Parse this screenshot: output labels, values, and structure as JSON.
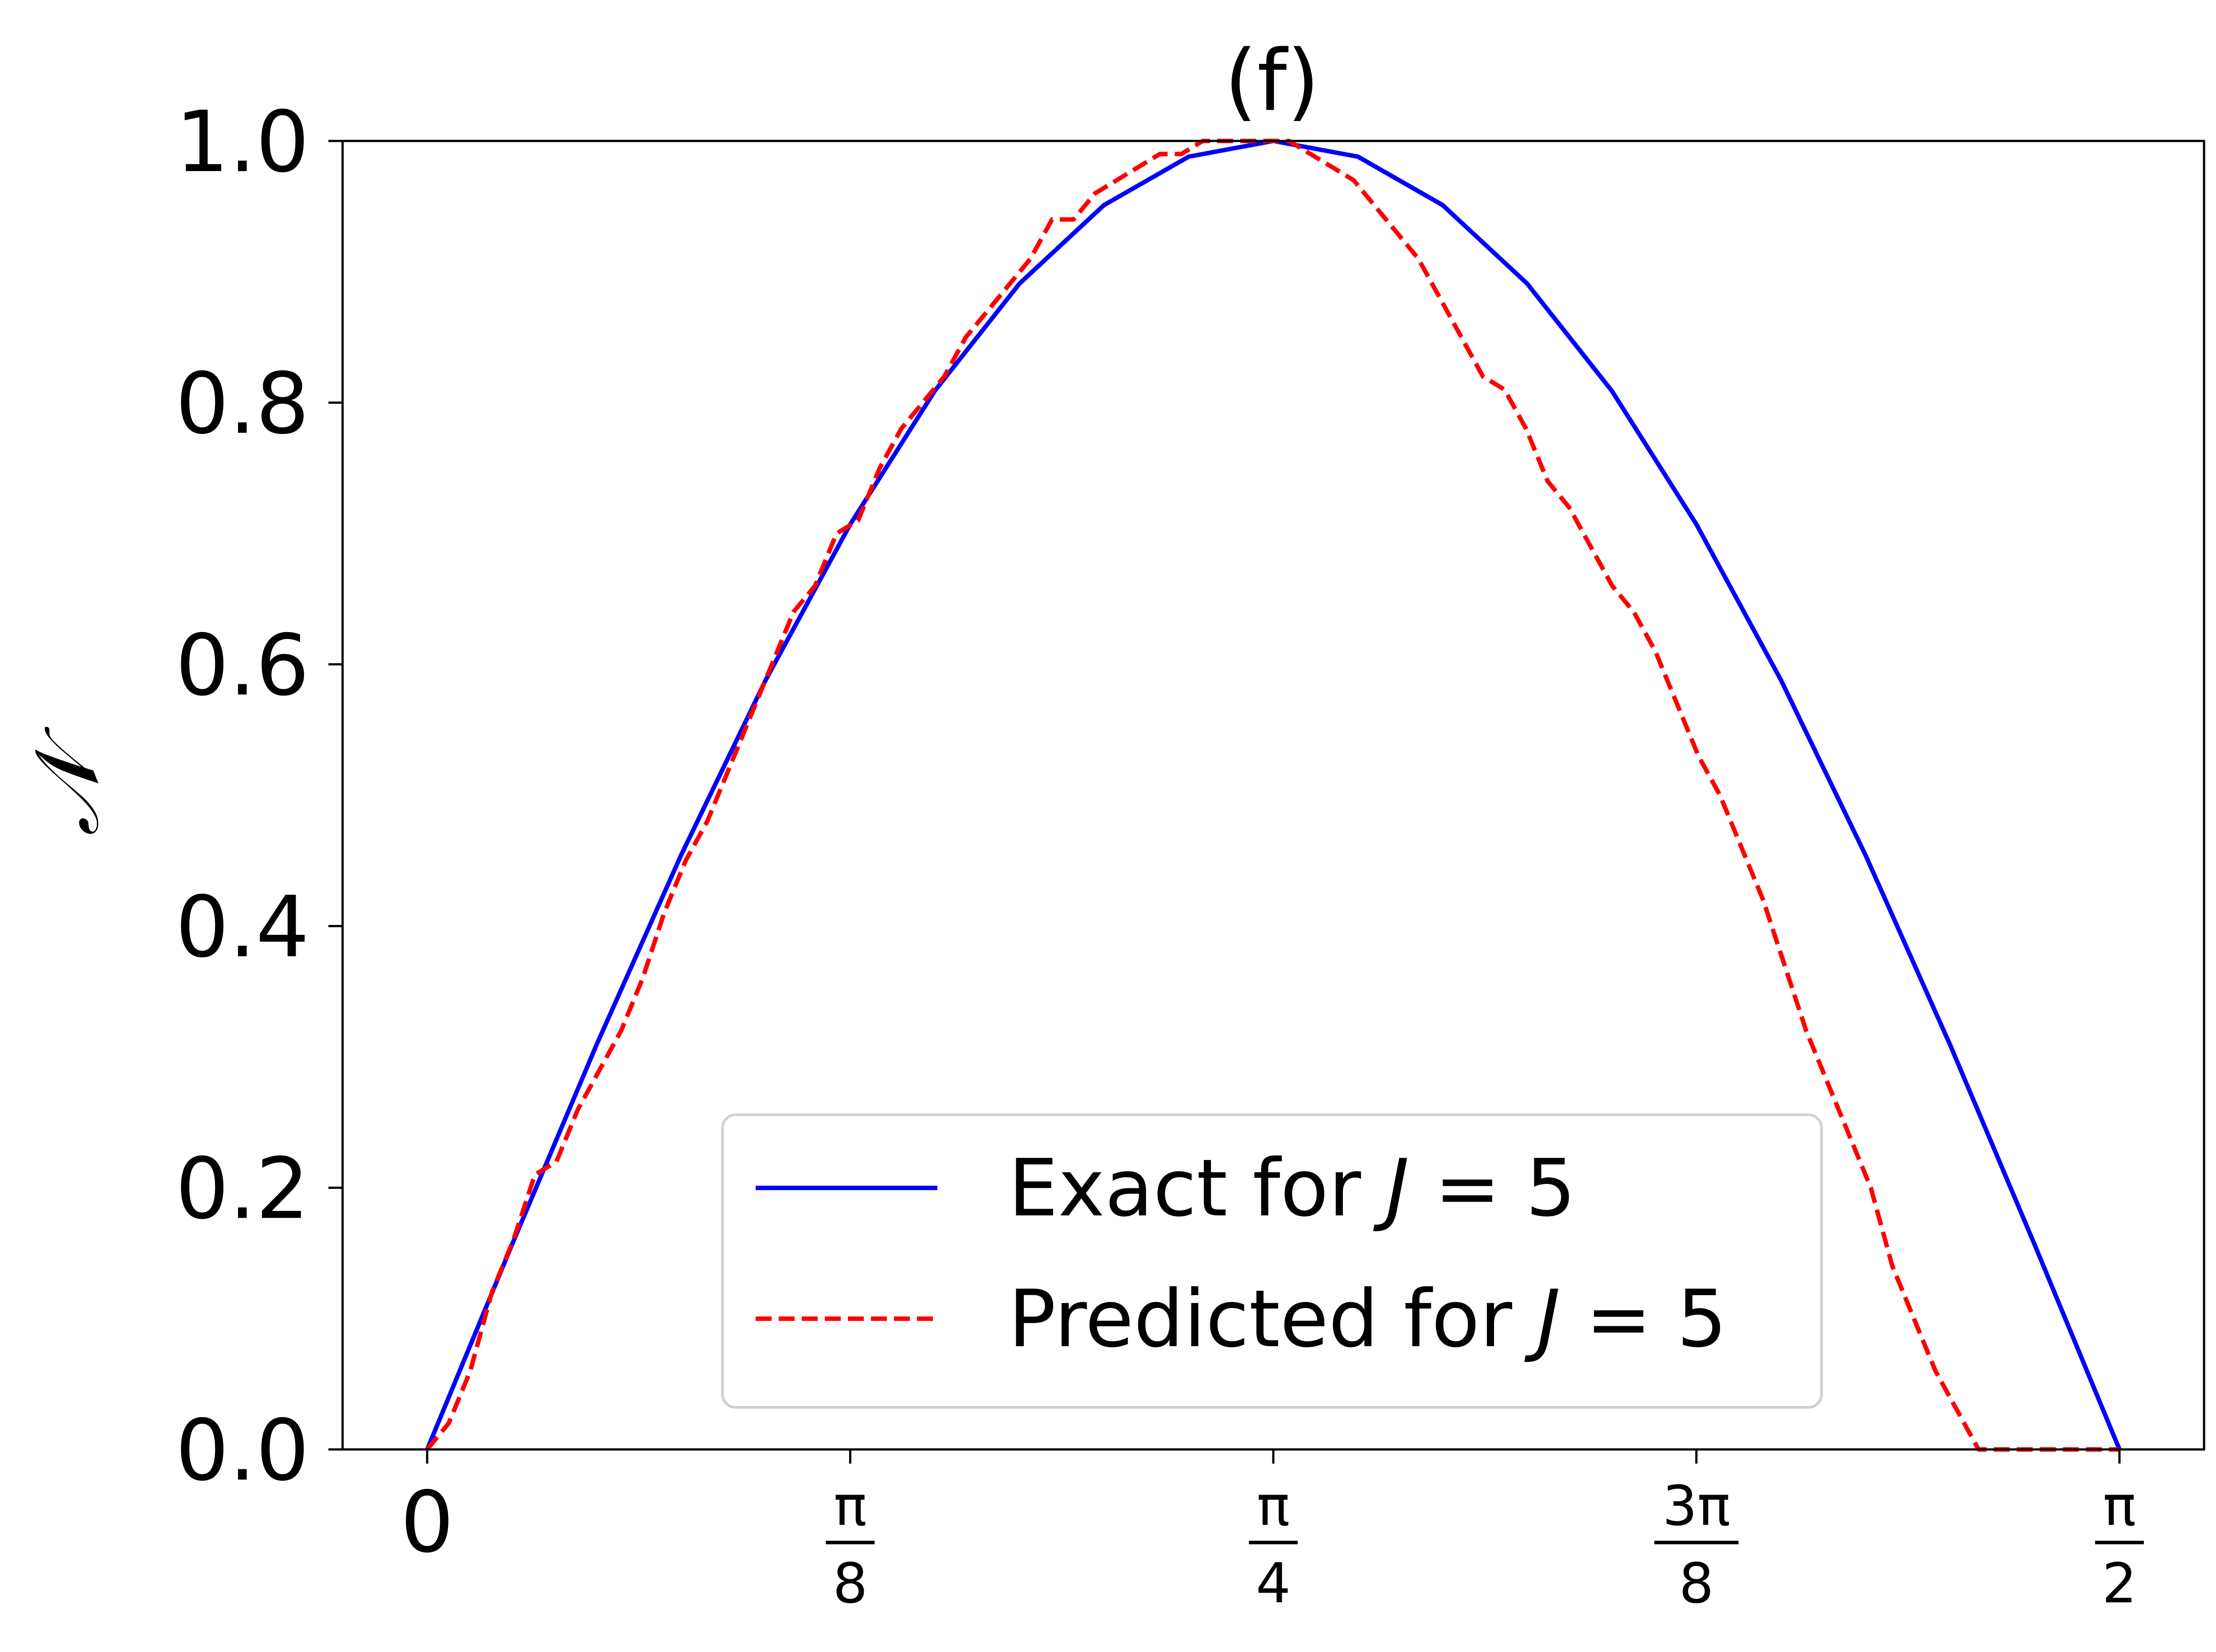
{
  "chart_data": {
    "type": "line",
    "title": "(f)",
    "xlabel": "",
    "ylabel": "𝒩",
    "xlim": [
      -0.0785,
      1.6493
    ],
    "ylim": [
      0.0,
      1.0
    ],
    "x_ticks": [
      {
        "value": 0.0,
        "label": "0"
      },
      {
        "value": 0.3927,
        "numerator": "π",
        "denominator": "8"
      },
      {
        "value": 0.7854,
        "numerator": "π",
        "denominator": "4"
      },
      {
        "value": 1.1781,
        "numerator": "3π",
        "denominator": "8"
      },
      {
        "value": 1.5708,
        "numerator": "π",
        "denominator": "2"
      }
    ],
    "y_ticks": [
      {
        "value": 0.0,
        "label": "0.0"
      },
      {
        "value": 0.2,
        "label": "0.2"
      },
      {
        "value": 0.4,
        "label": "0.4"
      },
      {
        "value": 0.6,
        "label": "0.6"
      },
      {
        "value": 0.8,
        "label": "0.8"
      },
      {
        "value": 1.0,
        "label": "1.0"
      }
    ],
    "grid": false,
    "legend_position": "lower-center",
    "series": [
      {
        "name": "Exact for J = 5",
        "legend_prefix": "Exact for ",
        "legend_var": "J",
        "legend_suffix": " = 5",
        "style": "solid",
        "color": "#0000ff",
        "x": [
          0.0,
          0.0785,
          0.1571,
          0.2356,
          0.3142,
          0.3927,
          0.4712,
          0.5498,
          0.6283,
          0.7069,
          0.7854,
          0.8639,
          0.9425,
          1.021,
          1.0996,
          1.1781,
          1.2566,
          1.3352,
          1.4137,
          1.4923,
          1.5708
        ],
        "y": [
          0.0,
          0.156,
          0.309,
          0.454,
          0.588,
          0.707,
          0.809,
          0.891,
          0.951,
          0.988,
          1.0,
          0.988,
          0.951,
          0.891,
          0.809,
          0.707,
          0.588,
          0.454,
          0.309,
          0.156,
          0.0
        ]
      },
      {
        "name": "Predicted for J = 5",
        "legend_prefix": "Predicted for ",
        "legend_var": "J",
        "legend_suffix": " = 5",
        "style": "dashed",
        "color": "#ff0000",
        "x": [
          0.0,
          0.02,
          0.04,
          0.06,
          0.08,
          0.1,
          0.12,
          0.14,
          0.16,
          0.18,
          0.2,
          0.22,
          0.24,
          0.26,
          0.28,
          0.3,
          0.32,
          0.34,
          0.36,
          0.38,
          0.4,
          0.42,
          0.44,
          0.46,
          0.48,
          0.5,
          0.52,
          0.54,
          0.56,
          0.58,
          0.6,
          0.62,
          0.64,
          0.66,
          0.68,
          0.7,
          0.72,
          0.74,
          0.76,
          0.78,
          0.8,
          0.82,
          0.84,
          0.86,
          0.88,
          0.9,
          0.92,
          0.94,
          0.96,
          0.98,
          1.0,
          1.02,
          1.04,
          1.06,
          1.08,
          1.1,
          1.12,
          1.14,
          1.16,
          1.18,
          1.2,
          1.22,
          1.24,
          1.26,
          1.28,
          1.3,
          1.32,
          1.34,
          1.36,
          1.38,
          1.4,
          1.42,
          1.44,
          1.46,
          1.48,
          1.5,
          1.52,
          1.54,
          1.56,
          1.57
        ],
        "y": [
          0.0,
          0.02,
          0.06,
          0.12,
          0.16,
          0.21,
          0.22,
          0.26,
          0.29,
          0.32,
          0.36,
          0.41,
          0.45,
          0.48,
          0.52,
          0.56,
          0.6,
          0.64,
          0.66,
          0.7,
          0.71,
          0.75,
          0.78,
          0.8,
          0.82,
          0.85,
          0.87,
          0.89,
          0.91,
          0.94,
          0.94,
          0.96,
          0.97,
          0.98,
          0.99,
          0.99,
          1.0,
          1.0,
          1.0,
          1.0,
          1.0,
          0.99,
          0.98,
          0.97,
          0.95,
          0.93,
          0.91,
          0.88,
          0.85,
          0.82,
          0.81,
          0.78,
          0.74,
          0.72,
          0.69,
          0.66,
          0.64,
          0.61,
          0.57,
          0.53,
          0.5,
          0.46,
          0.42,
          0.37,
          0.32,
          0.28,
          0.24,
          0.2,
          0.14,
          0.1,
          0.06,
          0.03,
          0.0,
          0.0,
          0.0,
          0.0,
          0.0,
          0.0,
          0.0,
          0.0
        ]
      }
    ]
  }
}
